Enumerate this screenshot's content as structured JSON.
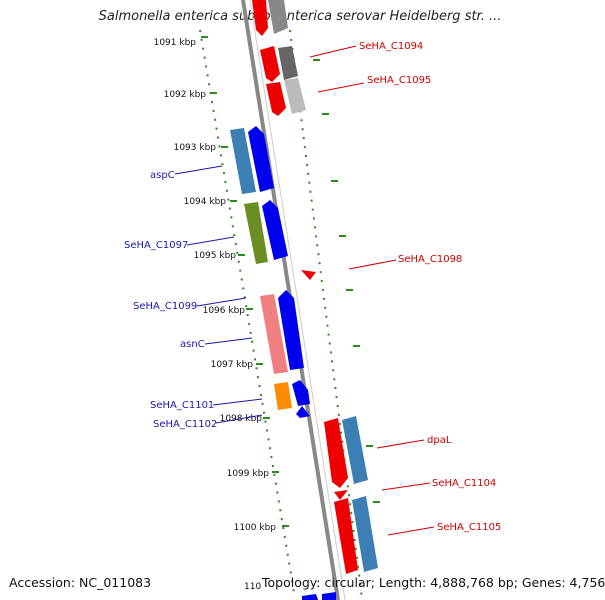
{
  "title": "Salmonella enterica subsp. enterica serovar Heidelberg str. ...",
  "accession": "Accession: NC_011083",
  "topology": "Topology: circular; Length: 4,888,768 bp; Genes: 4,756",
  "scale_labels": [
    "1091 kbp",
    "1092 kbp",
    "1093 kbp",
    "1094 kbp",
    "1095 kbp",
    "1096 kbp",
    "1097 kbp",
    "1098 kbp",
    "1099 kbp",
    "1100 kbp",
    "110"
  ],
  "genes_left": [
    {
      "name": "aspC",
      "color": "#1a1aa6"
    },
    {
      "name": "SeHA_C1097",
      "color": "#1a1aa6"
    },
    {
      "name": "SeHA_C1099",
      "color": "#1a1aa6"
    },
    {
      "name": "asnC",
      "color": "#1a1aa6"
    },
    {
      "name": "SeHA_C1101",
      "color": "#1a1aa6"
    },
    {
      "name": "SeHA_C1102",
      "color": "#1a1aa6"
    }
  ],
  "genes_right": [
    {
      "name": "SeHA_C1094",
      "color": "#cc0000"
    },
    {
      "name": "SeHA_C1095",
      "color": "#cc0000"
    },
    {
      "name": "SeHA_C1098",
      "color": "#cc0000"
    },
    {
      "name": "dpaL",
      "color": "#cc0000"
    },
    {
      "name": "SeHA_C1104",
      "color": "#cc0000"
    },
    {
      "name": "SeHA_C1105",
      "color": "#cc0000"
    }
  ],
  "colors": {
    "forward_strand": "#0000ee",
    "reverse_strand": "#ee0000",
    "backbone": "#888888",
    "ticks": "#2e8b22"
  }
}
